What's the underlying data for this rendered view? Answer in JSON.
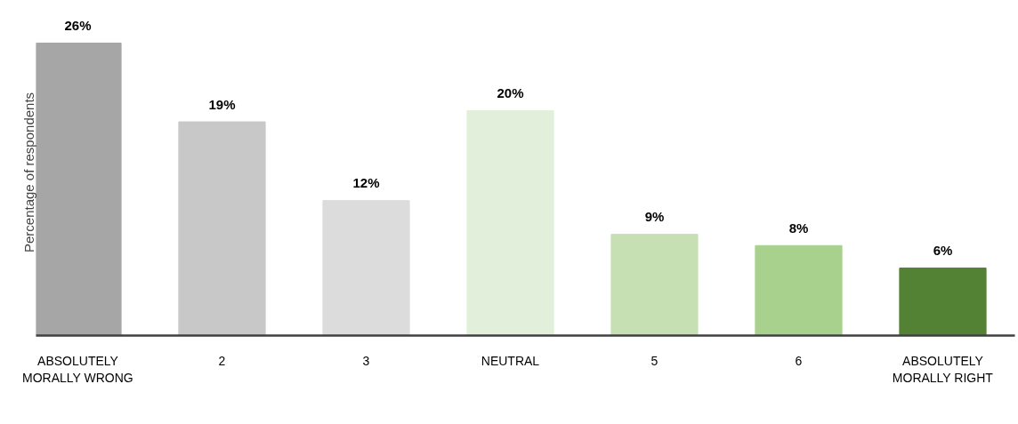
{
  "chart_data": {
    "type": "bar",
    "ylabel": "Percentage of respondents",
    "categories": [
      "ABSOLUTELY MORALLY WRONG",
      "2",
      "3",
      "NEUTRAL",
      "5",
      "6",
      "ABSOLUTELY MORALLY RIGHT"
    ],
    "values": [
      26,
      19,
      12,
      20,
      9,
      8,
      6
    ],
    "colors": [
      "#a6a6a6",
      "#c8c8c8",
      "#dcdcdc",
      "#e2efda",
      "#c6e0b4",
      "#a9d18e",
      "#548235"
    ],
    "value_labels": [
      "26%",
      "19%",
      "12%",
      "20%",
      "9%",
      "8%",
      "6%"
    ],
    "grid": false
  }
}
